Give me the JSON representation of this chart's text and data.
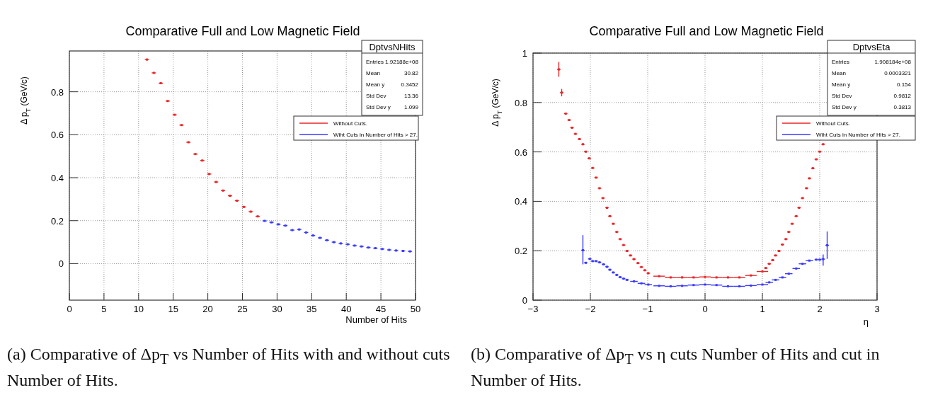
{
  "chart_data": [
    {
      "type": "scatter",
      "title": "Comparative Full and Low Magnetic Field",
      "xlabel": "Number of Hits",
      "ylabel": "Δ p$_{T}$ (GeV/c)",
      "xlim": [
        0,
        50
      ],
      "ylim": [
        -0.17,
        0.99
      ],
      "xticks": [
        0,
        5,
        10,
        15,
        20,
        25,
        30,
        35,
        40,
        45,
        50
      ],
      "yticks": [
        0,
        0.2,
        0.4,
        0.6,
        0.8
      ],
      "grid": true,
      "legend": "top right",
      "marker": "square",
      "series": [
        {
          "name": "Without Cuts.",
          "color": "#e8262a",
          "x": [
            11.2,
            12.2,
            13.2,
            14.2,
            15.2,
            16.2,
            17.2,
            18.2,
            19.2,
            20.2,
            21.2,
            22.2,
            23.2,
            24.2,
            25.2,
            26.2,
            27.2
          ],
          "values": [
            0.95,
            0.888,
            0.84,
            0.757,
            0.693,
            0.645,
            0.565,
            0.51,
            0.48,
            0.417,
            0.38,
            0.34,
            0.316,
            0.293,
            0.264,
            0.242,
            0.22
          ],
          "xerrors": [
            0.3,
            0.3,
            0.3,
            0.3,
            0.3,
            0.3,
            0.3,
            0.3,
            0.3,
            0.3,
            0.3,
            0.3,
            0.3,
            0.3,
            0.3,
            0.3,
            0.3
          ]
        },
        {
          "name": "Wiht Cuts in Number of Hits > 27.",
          "color": "#3a3aff",
          "x": [
            28.2,
            29.2,
            30.2,
            31.2,
            32.2,
            33.2,
            34.2,
            35.2,
            36.2,
            37.2,
            38.2,
            39.2,
            40.2,
            41.2,
            42.2,
            43.2,
            44.2,
            45.2,
            46.2,
            47.2,
            48.2,
            49.2
          ],
          "values": [
            0.199,
            0.192,
            0.183,
            0.177,
            0.156,
            0.159,
            0.145,
            0.131,
            0.12,
            0.109,
            0.1,
            0.094,
            0.09,
            0.084,
            0.08,
            0.075,
            0.072,
            0.068,
            0.064,
            0.061,
            0.059,
            0.057
          ],
          "xerrors": [
            0.3,
            0.3,
            0.3,
            0.3,
            0.3,
            0.3,
            0.3,
            0.3,
            0.3,
            0.3,
            0.3,
            0.3,
            0.3,
            0.3,
            0.3,
            0.3,
            0.3,
            0.3,
            0.3,
            0.3,
            0.3,
            0.3
          ]
        }
      ],
      "annotations": [
        "DptvsNHits",
        "Entries",
        "1.92188e+08",
        "Mean",
        "30.82",
        "Mean y",
        "0.3452",
        "Std Dev",
        "13.36",
        "Std Dev y",
        "1.099",
        "(a) Comparative of Δp$_{T}$ vs Number of Hits with and without cuts Number of Hits."
      ]
    },
    {
      "type": "scatter",
      "title": "Comparative Full and Low Magnetic Field",
      "xlabel": "η",
      "ylabel": "Δ p$_{T}$ (GeV/c)",
      "xlim": [
        -3,
        3
      ],
      "ylim": [
        0,
        1
      ],
      "xticks": [
        -3,
        -2,
        -1,
        0,
        1,
        2,
        3
      ],
      "yticks": [
        0,
        0.2,
        0.4,
        0.6,
        0.8,
        1
      ],
      "grid": true,
      "legend": "top right",
      "marker": "square",
      "series": [
        {
          "name": "Without Cuts.",
          "color": "#e8262a",
          "x": [
            -2.55,
            -2.5,
            -2.43,
            -2.37,
            -2.32,
            -2.26,
            -2.19,
            -2.13,
            -2.08,
            -2.02,
            -1.96,
            -1.9,
            -1.84,
            -1.78,
            -1.71,
            -1.66,
            -1.6,
            -1.54,
            -1.48,
            -1.42,
            -1.36,
            -1.3,
            -1.24,
            -1.17,
            -1.11,
            -1.05,
            -0.99,
            -0.8,
            -0.6,
            -0.4,
            -0.2,
            0,
            0.2,
            0.4,
            0.6,
            0.8,
            1.0,
            1.06,
            1.12,
            1.18,
            1.23,
            1.29,
            1.35,
            1.41,
            1.46,
            1.52,
            1.59,
            1.64,
            1.7,
            1.77,
            1.82,
            1.88,
            1.94,
            2.0,
            2.06
          ],
          "values": [
            0.934,
            0.84,
            0.755,
            0.729,
            0.698,
            0.673,
            0.652,
            0.631,
            0.601,
            0.574,
            0.535,
            0.496,
            0.453,
            0.413,
            0.374,
            0.34,
            0.309,
            0.276,
            0.247,
            0.223,
            0.199,
            0.181,
            0.166,
            0.15,
            0.134,
            0.121,
            0.109,
            0.097,
            0.092,
            0.092,
            0.092,
            0.094,
            0.092,
            0.092,
            0.092,
            0.1,
            0.116,
            0.13,
            0.147,
            0.162,
            0.181,
            0.199,
            0.225,
            0.247,
            0.276,
            0.309,
            0.34,
            0.374,
            0.413,
            0.453,
            0.493,
            0.534,
            0.57,
            0.601,
            0.631
          ],
          "errors": [
            0.03,
            0.015,
            null,
            null,
            null,
            null,
            null,
            null,
            null,
            null,
            null,
            null,
            null,
            null,
            null,
            null,
            null,
            null,
            null,
            null,
            null,
            null,
            null,
            null,
            null,
            null,
            null,
            null,
            null,
            null,
            null,
            null,
            null,
            null,
            null,
            null,
            null,
            null,
            null,
            null,
            null,
            null,
            null,
            null,
            null,
            null,
            null,
            null,
            null,
            null,
            null,
            null,
            null,
            null,
            null
          ],
          "xerrors": [
            0.03,
            0.03,
            0.03,
            0.03,
            0.03,
            0.03,
            0.03,
            0.03,
            0.03,
            0.03,
            0.03,
            0.03,
            0.03,
            0.03,
            0.03,
            0.03,
            0.03,
            0.03,
            0.03,
            0.03,
            0.03,
            0.03,
            0.03,
            0.03,
            0.03,
            0.03,
            0.03,
            0.1,
            0.1,
            0.1,
            0.1,
            0.1,
            0.1,
            0.1,
            0.1,
            0.1,
            0.1,
            0.03,
            0.03,
            0.03,
            0.03,
            0.03,
            0.03,
            0.03,
            0.03,
            0.03,
            0.03,
            0.03,
            0.03,
            0.03,
            0.03,
            0.03,
            0.03,
            0.03,
            0.03
          ]
        },
        {
          "name": "Wiht Cuts in Number of Hits > 27.",
          "color": "#3a3aff",
          "x": [
            -2.13,
            -2.08,
            -2.01,
            -1.96,
            -1.9,
            -1.84,
            -1.77,
            -1.71,
            -1.66,
            -1.6,
            -1.54,
            -1.48,
            -1.42,
            -1.36,
            -1.24,
            -1.11,
            -0.99,
            -0.8,
            -0.6,
            -0.4,
            -0.2,
            0,
            0.2,
            0.4,
            0.6,
            0.8,
            1.0,
            1.12,
            1.23,
            1.35,
            1.46,
            1.59,
            1.7,
            1.82,
            1.94,
            2.0,
            2.06,
            2.13
          ],
          "values": [
            0.202,
            0.151,
            0.167,
            0.158,
            0.158,
            0.153,
            0.145,
            0.135,
            0.123,
            0.112,
            0.102,
            0.093,
            0.087,
            0.082,
            0.076,
            0.068,
            0.063,
            0.058,
            0.056,
            0.058,
            0.061,
            0.063,
            0.061,
            0.056,
            0.056,
            0.059,
            0.063,
            0.072,
            0.082,
            0.092,
            0.107,
            0.128,
            0.147,
            0.16,
            0.164,
            0.164,
            0.166,
            0.222
          ],
          "errors": [
            [
              0.145,
              0.263
            ],
            null,
            null,
            null,
            null,
            null,
            null,
            null,
            null,
            null,
            null,
            null,
            null,
            null,
            null,
            null,
            null,
            null,
            null,
            null,
            null,
            null,
            null,
            null,
            null,
            null,
            null,
            null,
            null,
            null,
            null,
            null,
            null,
            null,
            null,
            null,
            [
              0.14,
              0.185
            ],
            [
              0.167,
              0.278
            ]
          ],
          "xerrors": [
            0.03,
            0.03,
            0.03,
            0.03,
            0.03,
            0.03,
            0.03,
            0.03,
            0.03,
            0.03,
            0.03,
            0.03,
            0.03,
            0.03,
            0.065,
            0.065,
            0.065,
            0.1,
            0.1,
            0.1,
            0.1,
            0.1,
            0.1,
            0.1,
            0.1,
            0.1,
            0.1,
            0.065,
            0.065,
            0.065,
            0.065,
            0.065,
            0.065,
            0.065,
            0.03,
            0.03,
            0.03,
            0.03
          ]
        }
      ],
      "annotations": [
        "DptvsEta",
        "Entries",
        "1.908184e+08",
        "Mean",
        "0.0003321",
        "Mean y",
        "0.154",
        "Std Dev",
        "0.9812",
        "Std Dev y",
        "0.3813",
        "(b) Comparative of Δp$_{T}$ vs η cuts Number of Hits and cut in Number of Hits."
      ]
    }
  ]
}
